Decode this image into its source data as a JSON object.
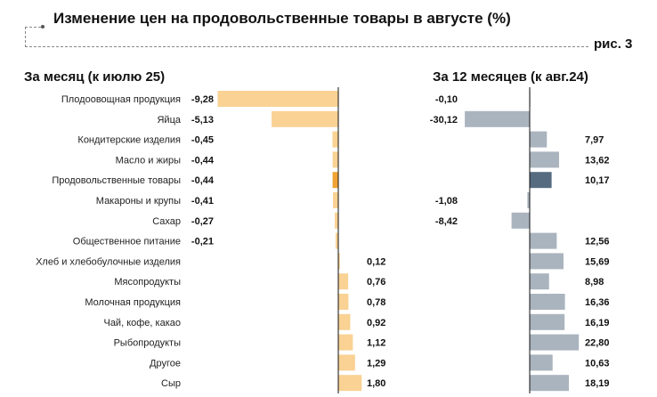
{
  "title": "Изменение цен на продовольственные товары в августе (%)",
  "figure_label": "рис. 3",
  "chart_data": [
    {
      "type": "bar",
      "orientation": "horizontal",
      "title": "За месяц (к июлю 25)",
      "categories": [
        "Плодоовощная продукция",
        "Яйца",
        "Кондитерские изделия",
        "Масло и жиры",
        "Продовольственные товары",
        "Макароны и крупы",
        "Сахар",
        "Общественное питание",
        "Хлеб и хлебобулочные изделия",
        "Мясопродукты",
        "Молочная продукция",
        "Чай, кофе, какао",
        "Рыбопродукты",
        "Другое",
        "Сыр"
      ],
      "values": [
        -9.28,
        -5.13,
        -0.45,
        -0.44,
        -0.44,
        -0.41,
        -0.27,
        -0.21,
        0.12,
        0.76,
        0.78,
        0.92,
        1.12,
        1.29,
        1.8
      ],
      "value_labels": [
        "-9,28",
        "-5,13",
        "-0,45",
        "-0,44",
        "-0,44",
        "-0,41",
        "-0,27",
        "-0,21",
        "0,12",
        "0,76",
        "0,78",
        "0,92",
        "1,12",
        "1,29",
        "1,80"
      ],
      "color": "#f9d294",
      "highlight_color": "#f0a334",
      "highlight_category": "Продовольственные товары"
    },
    {
      "type": "bar",
      "orientation": "horizontal",
      "title": "За 12 месяцев (к авг.24)",
      "categories": [
        "Плодоовощная продукция",
        "Яйца",
        "Кондитерские изделия",
        "Масло и жиры",
        "Продовольственные товары",
        "Макароны и крупы",
        "Сахар",
        "Общественное питание",
        "Хлеб и хлебобулочные изделия",
        "Мясопродукты",
        "Молочная продукция",
        "Чай, кофе, какао",
        "Рыбопродукты",
        "Другое",
        "Сыр"
      ],
      "values": [
        -0.1,
        -30.12,
        7.97,
        13.62,
        10.17,
        -1.08,
        -8.42,
        12.56,
        15.69,
        8.98,
        16.36,
        16.19,
        22.8,
        10.63,
        18.19
      ],
      "value_labels": [
        "-0,10",
        "-30,12",
        "7,97",
        "13,62",
        "10,17",
        "-1,08",
        "-8,42",
        "12,56",
        "15,69",
        "8,98",
        "16,36",
        "16,19",
        "22,80",
        "10,63",
        "18,19"
      ],
      "color": "#aab4be",
      "highlight_color": "#566b80",
      "highlight_category": "Продовольственные товары"
    }
  ]
}
